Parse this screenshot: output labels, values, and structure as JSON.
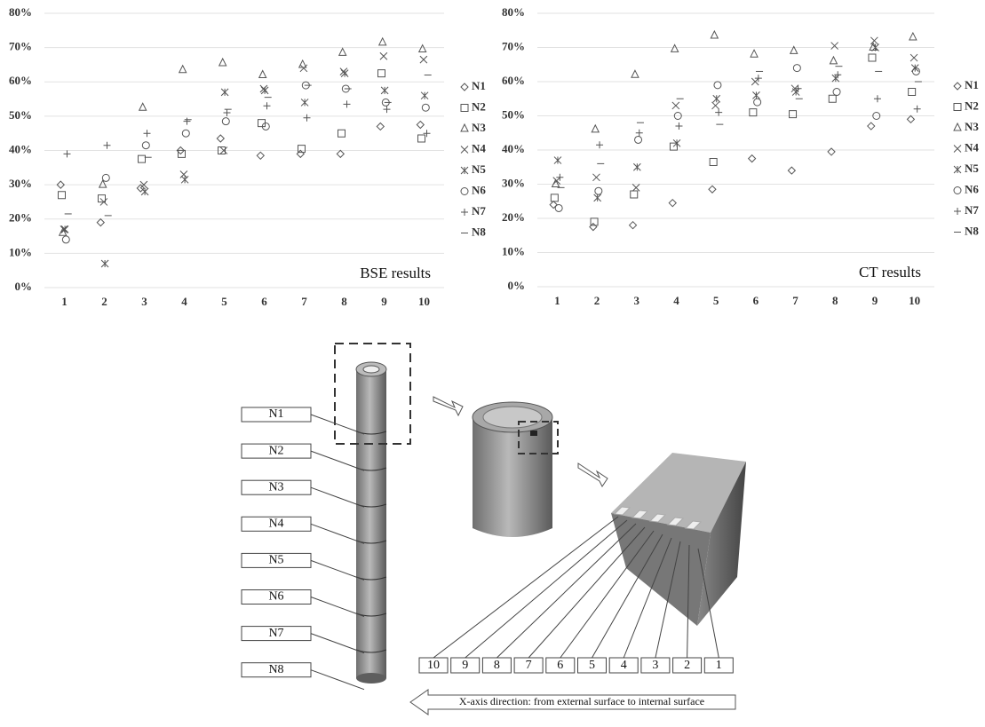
{
  "chart_data": [
    {
      "type": "scatter",
      "annotation": "BSE results",
      "categories": [
        "1",
        "2",
        "3",
        "4",
        "5",
        "6",
        "7",
        "8",
        "9",
        "10"
      ],
      "ylim": [
        0,
        80
      ],
      "yticks": [
        {
          "value": 0,
          "label": "0%"
        },
        {
          "value": 10,
          "label": "10%"
        },
        {
          "value": 20,
          "label": "20%"
        },
        {
          "value": 30,
          "label": "30%"
        },
        {
          "value": 40,
          "label": "40%"
        },
        {
          "value": 50,
          "label": "50%"
        },
        {
          "value": 60,
          "label": "60%"
        },
        {
          "value": 70,
          "label": "70%"
        },
        {
          "value": 80,
          "label": "80%"
        }
      ],
      "grid": true,
      "series": [
        {
          "name": "N1",
          "marker": "diamond",
          "color": "#555555",
          "values": [
            30,
            19,
            29,
            40,
            43.5,
            38.5,
            39,
            39,
            47,
            47.5
          ]
        },
        {
          "name": "N2",
          "marker": "square",
          "color": "#555555",
          "values": [
            27,
            26,
            37.5,
            39,
            40,
            48,
            40.5,
            45,
            62.5,
            43.5
          ]
        },
        {
          "name": "N3",
          "marker": "triangle",
          "color": "#555555",
          "values": [
            16,
            30,
            52.5,
            63.5,
            65.5,
            62,
            65,
            68.5,
            71.5,
            69.5
          ]
        },
        {
          "name": "N4",
          "marker": "cross",
          "color": "#555555",
          "values": [
            17,
            25,
            30,
            33,
            40,
            58,
            64,
            63,
            67.5,
            66.5
          ]
        },
        {
          "name": "N5",
          "marker": "asterisk",
          "color": "#555555",
          "values": [
            17,
            7,
            28,
            31.5,
            57,
            57.5,
            54,
            62.5,
            57.5,
            56
          ]
        },
        {
          "name": "N6",
          "marker": "circle",
          "color": "#555555",
          "values": [
            14,
            32,
            41.5,
            45,
            48.5,
            47,
            59,
            58,
            54,
            52.5
          ]
        },
        {
          "name": "N7",
          "marker": "plus",
          "color": "#555555",
          "values": [
            39,
            41.5,
            45,
            48.5,
            51,
            53,
            49.5,
            53.5,
            52,
            45
          ]
        },
        {
          "name": "N8",
          "marker": "dash",
          "color": "#555555",
          "values": [
            21.5,
            21,
            38,
            49,
            52,
            55.5,
            59,
            58,
            54,
            62
          ]
        }
      ]
    },
    {
      "type": "scatter",
      "annotation": "CT results",
      "categories": [
        "1",
        "2",
        "3",
        "4",
        "5",
        "6",
        "7",
        "8",
        "9",
        "10"
      ],
      "ylim": [
        0,
        80
      ],
      "yticks": [
        {
          "value": 0,
          "label": "0%"
        },
        {
          "value": 10,
          "label": "10%"
        },
        {
          "value": 20,
          "label": "20%"
        },
        {
          "value": 30,
          "label": "30%"
        },
        {
          "value": 40,
          "label": "40%"
        },
        {
          "value": 50,
          "label": "50%"
        },
        {
          "value": 60,
          "label": "60%"
        },
        {
          "value": 70,
          "label": "70%"
        },
        {
          "value": 80,
          "label": "80%"
        }
      ],
      "grid": true,
      "series": [
        {
          "name": "N1",
          "marker": "diamond",
          "color": "#555555",
          "values": [
            24,
            17.5,
            18,
            24.5,
            28.5,
            37.5,
            34,
            39.5,
            47,
            49
          ]
        },
        {
          "name": "N2",
          "marker": "square",
          "color": "#555555",
          "values": [
            26,
            19,
            27,
            41,
            36.5,
            51,
            50.5,
            55,
            67,
            57
          ]
        },
        {
          "name": "N3",
          "marker": "triangle",
          "color": "#555555",
          "values": [
            30,
            46,
            62,
            69.5,
            73.5,
            68,
            69,
            66,
            70,
            73
          ]
        },
        {
          "name": "N4",
          "marker": "cross",
          "color": "#555555",
          "values": [
            31,
            32,
            29,
            53,
            53,
            60,
            58,
            70.5,
            72,
            67
          ]
        },
        {
          "name": "N5",
          "marker": "asterisk",
          "color": "#555555",
          "values": [
            37,
            26,
            35,
            42,
            55,
            56,
            57,
            61,
            70,
            64
          ]
        },
        {
          "name": "N6",
          "marker": "circle",
          "color": "#555555",
          "values": [
            23,
            28,
            43,
            50,
            59,
            54,
            64,
            57,
            50,
            63
          ]
        },
        {
          "name": "N7",
          "marker": "plus",
          "color": "#555555",
          "values": [
            32,
            41.5,
            45,
            47,
            51,
            61,
            58,
            62,
            55,
            52
          ]
        },
        {
          "name": "N8",
          "marker": "dash",
          "color": "#555555",
          "values": [
            29,
            36,
            48,
            55,
            47.5,
            63,
            55,
            64.5,
            63,
            60
          ]
        }
      ]
    }
  ],
  "diagram": {
    "node_labels": [
      "N1",
      "N2",
      "N3",
      "N4",
      "N5",
      "N6",
      "N7",
      "N8"
    ],
    "position_labels": [
      "10",
      "9",
      "8",
      "7",
      "6",
      "5",
      "4",
      "3",
      "2",
      "1"
    ],
    "direction_caption": "X-axis direction: from external surface to internal surface"
  }
}
